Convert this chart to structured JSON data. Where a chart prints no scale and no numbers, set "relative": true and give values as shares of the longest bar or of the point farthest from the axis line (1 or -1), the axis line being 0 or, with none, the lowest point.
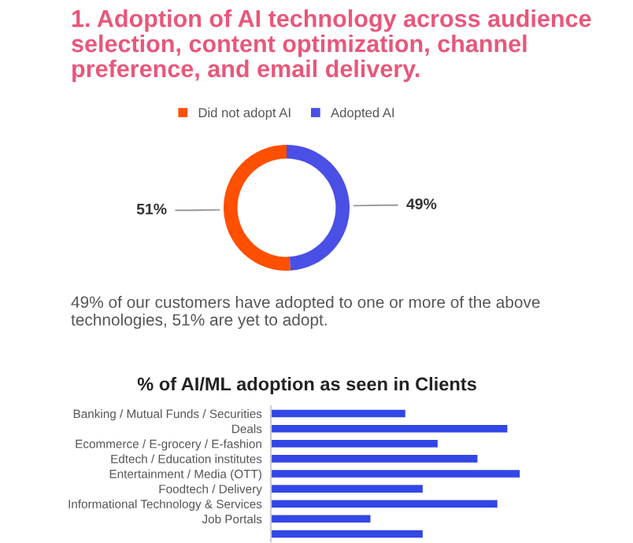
{
  "chart_data": [
    {
      "type": "donut",
      "title": "1. Adoption of AI technology across audience selection, content optimization, channel preference, and email delivery.",
      "categories": [
        "Did not adopt AI",
        "Adopted AI"
      ],
      "values": [
        51,
        49
      ],
      "colors": [
        "#ff4f00",
        "#4a4fe6"
      ],
      "value_labels": [
        "51%",
        "49%"
      ],
      "legend": "top",
      "annotations": [
        "49% of our customers have adopted to one or more of the above technologies, 51% are yet to adopt."
      ]
    },
    {
      "type": "bar",
      "orientation": "horizontal",
      "relative": true,
      "title": "% of AI/ML adoption as seen in Clients",
      "categories": [
        "Banking / Mutual Funds / Securities",
        "Deals",
        "Ecommerce / E-grocery / E-fashion",
        "Edtech / Education institutes",
        "Entertainment / Media (OTT)",
        "Foodtech / Delivery",
        "Informational Technology & Services",
        "Job Portals",
        null
      ],
      "values": [
        0.54,
        0.95,
        0.67,
        0.83,
        1,
        0.61,
        0.91,
        0.4,
        0.61
      ],
      "color": "#3346e6"
    }
  ]
}
